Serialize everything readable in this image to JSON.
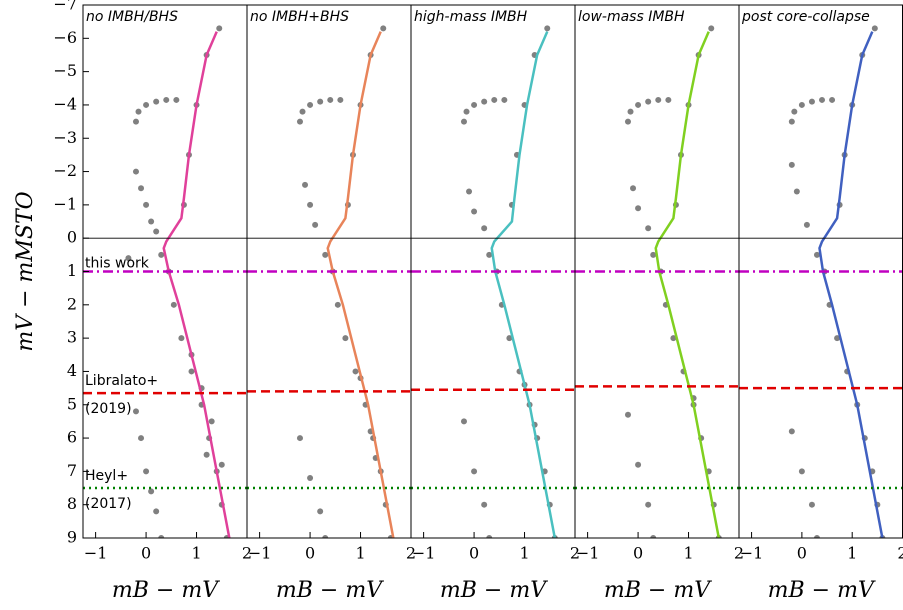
{
  "chart_data": [
    {
      "type": "scatter",
      "title": "no IMBH/BHS",
      "x_label": "mB − mV",
      "y_label": "mV − mMSTO",
      "xlim": [
        -1.25,
        2
      ],
      "ylim": [
        9,
        -7
      ],
      "y_inverted": true,
      "xticks": [
        {
          "value": -1,
          "label": "−1"
        },
        0,
        1,
        2
      ],
      "yticks": [
        {
          "value": -7,
          "label": "−7"
        },
        {
          "value": -6,
          "label": "−6"
        },
        {
          "value": -5,
          "label": "−5"
        },
        {
          "value": -4,
          "label": "−4"
        },
        {
          "value": -3,
          "label": "−3"
        },
        {
          "value": -2,
          "label": "−2"
        },
        {
          "value": -1,
          "label": "−1"
        },
        0,
        1,
        2,
        3,
        4,
        5,
        6,
        7,
        8,
        9
      ],
      "point_color": "#808080",
      "points": {
        "x": [
          -0.2,
          -0.15,
          0,
          0.2,
          0.4,
          0.6,
          0.75,
          0.85,
          1.0,
          1.2,
          1.45,
          -0.2,
          -0.1,
          0,
          0.1,
          0.2,
          0.3,
          0.45,
          0.55,
          0.7,
          0.9,
          1.1,
          1.25,
          1.4,
          1.5,
          1.6,
          0.9,
          1.1,
          1.3,
          1.2,
          1.5,
          -0.2,
          -0.1,
          0,
          0.1,
          0.2,
          0.3,
          -0.35
        ],
        "y": [
          -3.5,
          -3.8,
          -4.0,
          -4.1,
          -4.15,
          -4.15,
          -1,
          -2.5,
          -4,
          -5.5,
          -6.3,
          -2.0,
          -1.5,
          -1.0,
          -0.5,
          -0.2,
          0.5,
          1,
          2,
          3,
          4,
          5,
          6,
          7,
          8,
          9,
          3.5,
          4.5,
          5.5,
          6.5,
          6.8,
          5.2,
          6,
          7,
          7.6,
          8.2,
          9,
          0.6
        ]
      },
      "line": {
        "color": "#e0409a",
        "x": [
          1.65,
          1.4,
          1.15,
          0.9,
          0.65,
          0.45,
          0.35,
          0.4,
          0.7,
          0.75,
          0.85,
          1.0,
          1.2,
          1.4
        ],
        "y": [
          9,
          7,
          5,
          3.5,
          2,
          1,
          0.3,
          0.1,
          -0.6,
          -1.2,
          -2.5,
          -4,
          -5.5,
          -6.2
        ]
      },
      "hlines": [
        {
          "y": 0,
          "color": "#000000",
          "style": "solid"
        },
        {
          "y": 1,
          "color": "#c000c0",
          "style": "dashdot",
          "label": [
            "this work"
          ]
        },
        {
          "y": 4.65,
          "color": "#e00000",
          "style": "dashed",
          "label": [
            "Libralato+",
            "(2019)"
          ]
        },
        {
          "y": 7.5,
          "color": "#008000",
          "style": "dotted",
          "label": [
            "Heyl+",
            "(2017)"
          ]
        }
      ]
    },
    {
      "type": "scatter",
      "title": "no IMBH+BHS",
      "x_label": "mB − mV",
      "xlim": [
        -1.25,
        2
      ],
      "ylim": [
        9,
        -7
      ],
      "y_inverted": true,
      "xticks": [
        {
          "value": -1,
          "label": "−1"
        },
        0,
        1,
        2
      ],
      "point_color": "#808080",
      "points": {
        "x": [
          -0.2,
          -0.15,
          0,
          0.2,
          0.4,
          0.6,
          0.75,
          0.85,
          1.0,
          1.2,
          1.45,
          -0.1,
          0,
          0.1,
          0.3,
          0.45,
          0.55,
          0.7,
          0.9,
          1.1,
          1.25,
          1.4,
          1.5,
          1.6,
          1.0,
          1.2,
          1.3,
          -0.2,
          0,
          0.2,
          0.3
        ],
        "y": [
          -3.5,
          -3.8,
          -4.0,
          -4.1,
          -4.15,
          -4.15,
          -1,
          -2.5,
          -4,
          -5.5,
          -6.3,
          -1.6,
          -1.0,
          -0.4,
          0.5,
          1,
          2,
          3,
          4,
          5,
          6,
          7,
          8,
          9,
          4.2,
          5.8,
          6.6,
          6,
          7.2,
          8.2,
          9
        ]
      },
      "line": {
        "color": "#e8845a",
        "x": [
          1.65,
          1.4,
          1.15,
          0.9,
          0.65,
          0.45,
          0.35,
          0.4,
          0.7,
          0.75,
          0.85,
          1.0,
          1.2,
          1.4
        ],
        "y": [
          9,
          7,
          5,
          3.5,
          2,
          1,
          0.3,
          0.1,
          -0.6,
          -1.2,
          -2.5,
          -4,
          -5.5,
          -6.2
        ]
      },
      "hlines": [
        {
          "y": 0,
          "color": "#000000",
          "style": "solid"
        },
        {
          "y": 1,
          "color": "#c000c0",
          "style": "dashdot"
        },
        {
          "y": 4.6,
          "color": "#e00000",
          "style": "dashed"
        },
        {
          "y": 7.5,
          "color": "#008000",
          "style": "dotted"
        }
      ]
    },
    {
      "type": "scatter",
      "title": "high-mass IMBH",
      "x_label": "mB − mV",
      "xlim": [
        -1.25,
        2
      ],
      "ylim": [
        9,
        -7
      ],
      "y_inverted": true,
      "xticks": [
        {
          "value": -1,
          "label": "−1"
        },
        0,
        1,
        2
      ],
      "point_color": "#808080",
      "points": {
        "x": [
          -0.2,
          -0.15,
          0,
          0.2,
          0.4,
          0.6,
          0.75,
          0.85,
          1.0,
          1.2,
          1.45,
          -0.1,
          0,
          0.2,
          0.3,
          0.45,
          0.55,
          0.7,
          0.9,
          1.1,
          1.25,
          1.4,
          1.5,
          1.6,
          1.0,
          1.2,
          -0.2,
          0,
          0.2,
          0.3
        ],
        "y": [
          -3.5,
          -3.8,
          -4.0,
          -4.1,
          -4.15,
          -4.15,
          -1,
          -2.5,
          -4,
          -5.5,
          -6.3,
          -1.4,
          -0.8,
          -0.3,
          0.5,
          1,
          2,
          3,
          4,
          5,
          6,
          7,
          8,
          9,
          4.4,
          5.6,
          5.5,
          7,
          8,
          9
        ]
      },
      "line": {
        "color": "#4ac0c0",
        "x": [
          1.6,
          1.35,
          1.1,
          0.85,
          0.6,
          0.42,
          0.35,
          0.4,
          0.75,
          0.8,
          0.9,
          1.05,
          1.25,
          1.45
        ],
        "y": [
          9,
          7,
          5,
          3.5,
          2,
          1,
          0.3,
          0.1,
          -0.5,
          -1.2,
          -2.5,
          -4,
          -5.5,
          -6.2
        ]
      },
      "hlines": [
        {
          "y": 0,
          "color": "#000000",
          "style": "solid"
        },
        {
          "y": 1,
          "color": "#c000c0",
          "style": "dashdot"
        },
        {
          "y": 4.55,
          "color": "#e00000",
          "style": "dashed"
        },
        {
          "y": 7.5,
          "color": "#008000",
          "style": "dotted"
        }
      ]
    },
    {
      "type": "scatter",
      "title": "low-mass IMBH",
      "x_label": "mB − mV",
      "xlim": [
        -1.25,
        2
      ],
      "ylim": [
        9,
        -7
      ],
      "y_inverted": true,
      "xticks": [
        {
          "value": -1,
          "label": "−1"
        },
        0,
        1,
        2
      ],
      "point_color": "#808080",
      "points": {
        "x": [
          -0.2,
          -0.15,
          0,
          0.2,
          0.4,
          0.6,
          0.75,
          0.85,
          1.0,
          1.2,
          1.45,
          -0.1,
          0,
          0.2,
          0.3,
          0.45,
          0.55,
          0.7,
          0.9,
          1.1,
          1.25,
          1.4,
          1.5,
          1.6,
          1.1,
          -0.2,
          0,
          0.2,
          0.3
        ],
        "y": [
          -3.5,
          -3.8,
          -4.0,
          -4.1,
          -4.15,
          -4.15,
          -1,
          -2.5,
          -4,
          -5.5,
          -6.3,
          -1.5,
          -0.9,
          -0.3,
          0.5,
          1,
          2,
          3,
          4,
          5,
          6,
          7,
          8,
          9,
          4.8,
          5.3,
          6.8,
          8,
          9
        ]
      },
      "line": {
        "color": "#80d020",
        "x": [
          1.6,
          1.35,
          1.1,
          0.85,
          0.6,
          0.42,
          0.35,
          0.4,
          0.7,
          0.75,
          0.85,
          1.0,
          1.2,
          1.4
        ],
        "y": [
          9,
          7,
          5,
          3.5,
          2,
          1,
          0.3,
          0.1,
          -0.6,
          -1.2,
          -2.5,
          -4,
          -5.5,
          -6.2
        ]
      },
      "hlines": [
        {
          "y": 0,
          "color": "#000000",
          "style": "solid"
        },
        {
          "y": 1,
          "color": "#c000c0",
          "style": "dashdot"
        },
        {
          "y": 4.45,
          "color": "#e00000",
          "style": "dashed"
        },
        {
          "y": 7.5,
          "color": "#008000",
          "style": "dotted"
        }
      ]
    },
    {
      "type": "scatter",
      "title": "post core-collapse",
      "x_label": "mB − mV",
      "xlim": [
        -1.25,
        2
      ],
      "ylim": [
        9,
        -7
      ],
      "y_inverted": true,
      "xticks": [
        {
          "value": -1,
          "label": "−1"
        },
        0,
        1,
        {
          "value": 2,
          "label": "2"
        }
      ],
      "point_color": "#808080",
      "points": {
        "x": [
          -0.2,
          -0.15,
          0,
          0.2,
          0.4,
          0.6,
          0.75,
          0.85,
          1.0,
          1.2,
          1.45,
          -0.2,
          -0.1,
          0.1,
          0.3,
          0.45,
          0.55,
          0.7,
          0.9,
          1.1,
          1.25,
          1.4,
          1.5,
          1.6,
          -0.2,
          0,
          0.2,
          0.3
        ],
        "y": [
          -3.5,
          -3.8,
          -4.0,
          -4.1,
          -4.15,
          -4.15,
          -1,
          -2.5,
          -4,
          -5.5,
          -6.3,
          -2.2,
          -1.4,
          -0.4,
          0.5,
          1,
          2,
          3,
          4,
          5,
          6,
          7,
          8,
          9,
          5.8,
          7,
          8,
          9
        ]
      },
      "line": {
        "color": "#4060c0",
        "x": [
          1.6,
          1.35,
          1.1,
          0.85,
          0.6,
          0.42,
          0.35,
          0.4,
          0.7,
          0.75,
          0.85,
          1.0,
          1.2,
          1.4
        ],
        "y": [
          9,
          7,
          5,
          3.5,
          2,
          1,
          0.3,
          0.1,
          -0.6,
          -1.2,
          -2.5,
          -4,
          -5.5,
          -6.2
        ]
      },
      "hlines": [
        {
          "y": 0,
          "color": "#000000",
          "style": "solid"
        },
        {
          "y": 1,
          "color": "#c000c0",
          "style": "dashdot"
        },
        {
          "y": 4.5,
          "color": "#e00000",
          "style": "dashed"
        },
        {
          "y": 7.5,
          "color": "#008000",
          "style": "dotted"
        }
      ]
    }
  ]
}
